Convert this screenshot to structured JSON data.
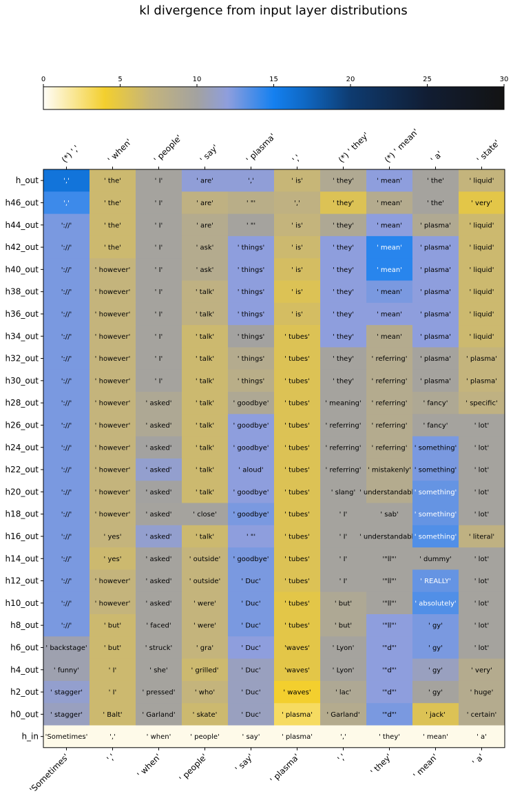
{
  "chart_data": {
    "type": "heatmap",
    "title": "kl divergence from input layer distributions",
    "colorbar": {
      "min": 0,
      "max": 30,
      "ticks": [
        0,
        5,
        10,
        15,
        20,
        25,
        30
      ],
      "stops": [
        {
          "v": 0,
          "c": "#fffdf8"
        },
        {
          "v": 4,
          "c": "#f3cf2e"
        },
        {
          "v": 7,
          "c": "#c4b47c"
        },
        {
          "v": 10,
          "c": "#a3a2a0"
        },
        {
          "v": 12,
          "c": "#8e9edd"
        },
        {
          "v": 15,
          "c": "#1480f0"
        },
        {
          "v": 17,
          "c": "#0f68c4"
        },
        {
          "v": 20,
          "c": "#0e3b70"
        },
        {
          "v": 25,
          "c": "#111d33"
        },
        {
          "v": 30,
          "c": "#131313"
        }
      ]
    },
    "top_labels": [
      "(*) ','",
      "' when'",
      "' people'",
      "' say'",
      "' plasma'",
      "','",
      "(*) ' they'",
      "(*) ' mean'",
      "' a'",
      "' state'"
    ],
    "bottom_labels": [
      "'Sometimes'",
      "','",
      "' when'",
      "' people'",
      "' say'",
      "' plasma'",
      "','",
      "' they'",
      "' mean'",
      "' a'"
    ],
    "rows": [
      "h_out",
      "h46_out",
      "h44_out",
      "h42_out",
      "h40_out",
      "h38_out",
      "h36_out",
      "h34_out",
      "h32_out",
      "h30_out",
      "h28_out",
      "h26_out",
      "h24_out",
      "h22_out",
      "h20_out",
      "h18_out",
      "h16_out",
      "h14_out",
      "h12_out",
      "h10_out",
      "h8_out",
      "h6_out",
      "h4_out",
      "h2_out",
      "h0_out",
      "h_in"
    ],
    "tokens": [
      [
        "','",
        "' the'",
        "' I'",
        "' are'",
        "','",
        "' is'",
        "' they'",
        "' mean'",
        "' the'",
        "' liquid'"
      ],
      [
        "','",
        "' the'",
        "' I'",
        "' are'",
        "' \"'",
        "','",
        "' they'",
        "' mean'",
        "' the'",
        "' very'"
      ],
      [
        "'://'",
        "' the'",
        "' I'",
        "' are'",
        "' \"'",
        "' is'",
        "' they'",
        "' mean'",
        "' plasma'",
        "' liquid'"
      ],
      [
        "'://'",
        "' the'",
        "' I'",
        "' ask'",
        "' things'",
        "' is'",
        "' they'",
        "' mean'",
        "' plasma'",
        "' liquid'"
      ],
      [
        "'://'",
        "' however'",
        "' I'",
        "' ask'",
        "' things'",
        "' is'",
        "' they'",
        "' mean'",
        "' plasma'",
        "' liquid'"
      ],
      [
        "'://'",
        "' however'",
        "' I'",
        "' talk'",
        "' things'",
        "' is'",
        "' they'",
        "' mean'",
        "' plasma'",
        "' liquid'"
      ],
      [
        "'://'",
        "' however'",
        "' I'",
        "' talk'",
        "' things'",
        "' is'",
        "' they'",
        "' mean'",
        "' plasma'",
        "' liquid'"
      ],
      [
        "'://'",
        "' however'",
        "' I'",
        "' talk'",
        "' things'",
        "' tubes'",
        "' they'",
        "' mean'",
        "' plasma'",
        "' liquid'"
      ],
      [
        "'://'",
        "' however'",
        "' I'",
        "' talk'",
        "' things'",
        "' tubes'",
        "' they'",
        "' referring'",
        "' plasma'",
        "' plasma'"
      ],
      [
        "'://'",
        "' however'",
        "' I'",
        "' talk'",
        "' things'",
        "' tubes'",
        "' they'",
        "' referring'",
        "' plasma'",
        "' plasma'"
      ],
      [
        "'://'",
        "' however'",
        "' asked'",
        "' talk'",
        "' goodbye'",
        "' tubes'",
        "' meaning'",
        "' referring'",
        "' fancy'",
        "' specific'"
      ],
      [
        "'://'",
        "' however'",
        "' asked'",
        "' talk'",
        "' goodbye'",
        "' tubes'",
        "' referring'",
        "' referring'",
        "' fancy'",
        "' lot'"
      ],
      [
        "'://'",
        "' however'",
        "' asked'",
        "' talk'",
        "' goodbye'",
        "' tubes'",
        "' referring'",
        "' referring'",
        "' something'",
        "' lot'"
      ],
      [
        "'://'",
        "' however'",
        "' asked'",
        "' talk'",
        "' aloud'",
        "' tubes'",
        "' referring'",
        "' mistakenly'",
        "' something'",
        "' lot'"
      ],
      [
        "'://'",
        "' however'",
        "' asked'",
        "' talk'",
        "' goodbye'",
        "' tubes'",
        "' slang'",
        "' understandably'",
        "' something'",
        "' lot'"
      ],
      [
        "'://'",
        "' however'",
        "' asked'",
        "' close'",
        "' goodbye'",
        "' tubes'",
        "' I'",
        "' sab'",
        "' something'",
        "' lot'"
      ],
      [
        "'://'",
        "' yes'",
        "' asked'",
        "' talk'",
        "' \"'",
        "' tubes'",
        "' I'",
        "' understandably'",
        "' something'",
        "' literal'"
      ],
      [
        "'://'",
        "' yes'",
        "' asked'",
        "' outside'",
        "' goodbye'",
        "' tubes'",
        "' I'",
        "'\"ll\"'",
        "' dummy'",
        "' lot'"
      ],
      [
        "'://'",
        "' however'",
        "' asked'",
        "' outside'",
        "' Duc'",
        "' tubes'",
        "' I'",
        "'\"ll\"'",
        "' REALLY'",
        "' lot'"
      ],
      [
        "'://'",
        "' however'",
        "' asked'",
        "' were'",
        "' Duc'",
        "' tubes'",
        "' but'",
        "'\"ll\"'",
        "' absolutely'",
        "' lot'"
      ],
      [
        "'://'",
        "' but'",
        "' faced'",
        "' were'",
        "' Duc'",
        "' tubes'",
        "' but'",
        "'\"ll\"'",
        "' gy'",
        "' lot'"
      ],
      [
        "' backstage'",
        "' but'",
        "' struck'",
        "' gra'",
        "' Duc'",
        "'waves'",
        "' Lyon'",
        "'\"d\"'",
        "' gy'",
        "' lot'"
      ],
      [
        "' funny'",
        "' I'",
        "' she'",
        "' grilled'",
        "' Duc'",
        "'waves'",
        "' Lyon'",
        "'\"d\"'",
        "' gy'",
        "' very'"
      ],
      [
        "' stagger'",
        "' I'",
        "' pressed'",
        "' who'",
        "' Duc'",
        "' waves'",
        "' lac'",
        "'\"d\"'",
        "' gy'",
        "' huge'"
      ],
      [
        "' stagger'",
        "' Balt'",
        "' Garland'",
        "' skate'",
        "' Duc'",
        "' plasma'",
        "' Garland'",
        "'\"d\"'",
        "' jack'",
        "' certain'"
      ],
      [
        "'Sometimes'",
        "','",
        "' when'",
        "' people'",
        "' say'",
        "' plasma'",
        "','",
        "' they'",
        "' mean'",
        "' a'"
      ]
    ],
    "values": [
      [
        16.0,
        6.5,
        9.8,
        11.8,
        11.8,
        6.8,
        8.8,
        12.0,
        9.8,
        7.0
      ],
      [
        14.0,
        6.5,
        9.8,
        7.5,
        8.0,
        7.5,
        5.5,
        8.5,
        9.8,
        5.0
      ],
      [
        12.5,
        6.5,
        9.8,
        8.5,
        9.8,
        7.0,
        9.0,
        12.0,
        8.8,
        6.5
      ],
      [
        12.5,
        6.5,
        9.8,
        8.5,
        12.0,
        6.5,
        12.0,
        14.5,
        12.0,
        6.5
      ],
      [
        12.5,
        7.0,
        9.8,
        8.5,
        12.0,
        6.0,
        12.0,
        14.5,
        12.0,
        6.5
      ],
      [
        12.5,
        7.0,
        9.8,
        7.5,
        12.0,
        5.5,
        12.0,
        12.5,
        12.0,
        6.5
      ],
      [
        12.5,
        7.0,
        9.8,
        7.5,
        12.0,
        6.0,
        12.0,
        12.0,
        12.0,
        6.5
      ],
      [
        12.5,
        7.0,
        9.8,
        6.5,
        10.0,
        5.5,
        12.0,
        8.5,
        12.0,
        6.5
      ],
      [
        12.5,
        7.0,
        9.8,
        6.5,
        8.5,
        5.5,
        9.8,
        8.5,
        9.8,
        7.0
      ],
      [
        12.5,
        7.0,
        9.8,
        6.5,
        8.0,
        5.5,
        9.8,
        8.5,
        9.8,
        7.0
      ],
      [
        12.5,
        7.0,
        9.0,
        6.5,
        9.0,
        5.5,
        9.8,
        8.5,
        9.0,
        7.5
      ],
      [
        12.5,
        7.0,
        9.0,
        6.5,
        12.0,
        5.5,
        9.8,
        8.5,
        9.8,
        9.8
      ],
      [
        12.5,
        7.0,
        10.0,
        6.5,
        12.0,
        5.5,
        9.8,
        8.5,
        12.5,
        9.8
      ],
      [
        12.5,
        7.0,
        11.5,
        6.5,
        12.0,
        5.5,
        9.8,
        8.5,
        12.5,
        9.8
      ],
      [
        12.5,
        7.0,
        10.0,
        6.5,
        12.0,
        5.5,
        9.8,
        8.5,
        13.0,
        9.8
      ],
      [
        12.5,
        7.0,
        9.8,
        9.8,
        12.5,
        5.5,
        9.8,
        9.8,
        13.0,
        9.8
      ],
      [
        12.5,
        7.0,
        11.5,
        6.5,
        12.0,
        5.5,
        9.8,
        9.8,
        13.5,
        7.5
      ],
      [
        12.5,
        6.5,
        9.8,
        7.0,
        12.5,
        5.5,
        9.8,
        9.8,
        9.8,
        9.8
      ],
      [
        12.5,
        7.0,
        9.8,
        7.0,
        12.5,
        5.5,
        9.8,
        9.8,
        13.0,
        9.8
      ],
      [
        12.5,
        7.0,
        9.8,
        7.0,
        12.5,
        5.0,
        9.0,
        9.8,
        13.5,
        9.8
      ],
      [
        12.5,
        6.5,
        9.8,
        7.0,
        12.5,
        5.0,
        9.0,
        12.0,
        12.5,
        9.8
      ],
      [
        10.5,
        6.5,
        9.8,
        7.0,
        12.0,
        5.0,
        9.8,
        12.0,
        12.5,
        9.8
      ],
      [
        10.5,
        6.5,
        9.8,
        6.5,
        11.0,
        5.0,
        9.8,
        12.0,
        11.0,
        8.5
      ],
      [
        11.5,
        6.5,
        9.8,
        7.0,
        11.0,
        4.0,
        9.0,
        12.0,
        9.8,
        8.5
      ],
      [
        11.0,
        6.5,
        9.8,
        6.5,
        11.0,
        3.0,
        8.5,
        12.5,
        5.5,
        8.5
      ],
      [
        0.3,
        0.3,
        0.3,
        0.3,
        0.3,
        0.3,
        0.3,
        0.3,
        0.3,
        0.3
      ]
    ]
  }
}
